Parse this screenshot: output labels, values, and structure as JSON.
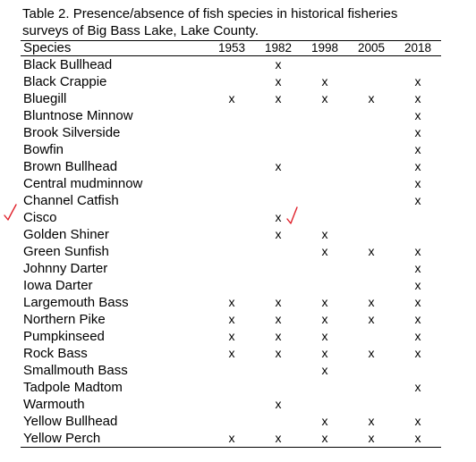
{
  "caption": "Table 2.  Presence/absence of fish species in historical fisheries surveys of Big Bass Lake, Lake County.",
  "columns": [
    "Species",
    "1953",
    "1982",
    "1998",
    "2005",
    "2018"
  ],
  "rows": [
    {
      "species": "Black Bullhead",
      "marks": [
        "",
        "x",
        "",
        "",
        ""
      ]
    },
    {
      "species": "Black Crappie",
      "marks": [
        "",
        "x",
        "x",
        "",
        "x"
      ]
    },
    {
      "species": "Bluegill",
      "marks": [
        "x",
        "x",
        "x",
        "x",
        "x"
      ]
    },
    {
      "species": "Bluntnose Minnow",
      "marks": [
        "",
        "",
        "",
        "",
        "x"
      ]
    },
    {
      "species": "Brook Silverside",
      "marks": [
        "",
        "",
        "",
        "",
        "x"
      ]
    },
    {
      "species": "Bowfin",
      "marks": [
        "",
        "",
        "",
        "",
        "x"
      ]
    },
    {
      "species": "Brown Bullhead",
      "marks": [
        "",
        "x",
        "",
        "",
        "x"
      ]
    },
    {
      "species": "Central mudminnow",
      "marks": [
        "",
        "",
        "",
        "",
        "x"
      ]
    },
    {
      "species": "Channel Catfish",
      "marks": [
        "",
        "",
        "",
        "",
        "x"
      ]
    },
    {
      "species": "Cisco",
      "marks": [
        "",
        "x",
        "",
        "",
        ""
      ]
    },
    {
      "species": "Golden Shiner",
      "marks": [
        "",
        "x",
        "x",
        "",
        ""
      ]
    },
    {
      "species": "Green Sunfish",
      "marks": [
        "",
        "",
        "x",
        "x",
        "x"
      ]
    },
    {
      "species": "Johnny Darter",
      "marks": [
        "",
        "",
        "",
        "",
        "x"
      ]
    },
    {
      "species": "Iowa Darter",
      "marks": [
        "",
        "",
        "",
        "",
        "x"
      ]
    },
    {
      "species": "Largemouth Bass",
      "marks": [
        "x",
        "x",
        "x",
        "x",
        "x"
      ]
    },
    {
      "species": "Northern Pike",
      "marks": [
        "x",
        "x",
        "x",
        "x",
        "x"
      ]
    },
    {
      "species": "Pumpkinseed",
      "marks": [
        "x",
        "x",
        "x",
        "",
        "x"
      ]
    },
    {
      "species": "Rock Bass",
      "marks": [
        "x",
        "x",
        "x",
        "x",
        "x"
      ]
    },
    {
      "species": "Smallmouth Bass",
      "marks": [
        "",
        "",
        "x",
        "",
        ""
      ]
    },
    {
      "species": "Tadpole Madtom",
      "marks": [
        "",
        "",
        "",
        "",
        "x"
      ]
    },
    {
      "species": "Warmouth",
      "marks": [
        "",
        "x",
        "",
        "",
        ""
      ]
    },
    {
      "species": "Yellow Bullhead",
      "marks": [
        "",
        "",
        "x",
        "x",
        "x"
      ]
    },
    {
      "species": "Yellow Perch",
      "marks": [
        "x",
        "x",
        "x",
        "x",
        "x"
      ]
    }
  ],
  "annotations": {
    "check_color": "#e0202a",
    "check_marks": [
      {
        "row": "Channel Catfish",
        "location": "left-margin"
      },
      {
        "row": "Cisco",
        "location": "after-1982-mark"
      }
    ]
  }
}
